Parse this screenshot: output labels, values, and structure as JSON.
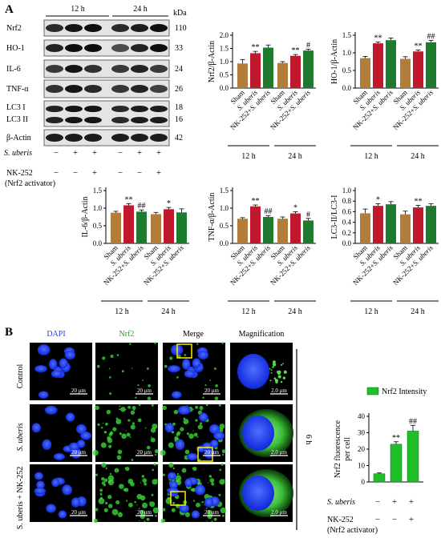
{
  "panel_a": {
    "label": "A",
    "kda_unit": "kDa",
    "time_labels": [
      "12 h",
      "24 h"
    ],
    "blots": [
      {
        "name": "Nrf2",
        "kda": "110"
      },
      {
        "name": "HO-1",
        "kda": "33"
      },
      {
        "name": "IL-6",
        "kda": "24"
      },
      {
        "name": "TNF-α",
        "kda": "26"
      },
      {
        "name": "LC3 I",
        "kda": "18"
      },
      {
        "name": "LC3 II",
        "kda": "16"
      },
      {
        "name": "β-Actin",
        "kda": "42"
      }
    ],
    "treatment_rows": [
      {
        "label": "S. uberis",
        "signs": [
          "−",
          "+",
          "+",
          "−",
          "+",
          "+"
        ]
      },
      {
        "label": "NK-252",
        "sublabel": "(Nrf2 activator)",
        "signs": [
          "−",
          "−",
          "+",
          "−",
          "−",
          "+"
        ]
      }
    ],
    "group_labels": [
      "Sham",
      "S. uberis",
      "NK-252+S. uberis"
    ],
    "colors": {
      "sham": "#b07d3a",
      "suberis": "#c0192d",
      "nk": "#1e7a2e"
    }
  },
  "panel_b": {
    "label": "B",
    "column_headers": [
      "DAPI",
      "Nrf2",
      "Merge",
      "Magnification"
    ],
    "row_labels": [
      "Control",
      "S. uberis",
      "S. uberis + NK-252"
    ],
    "scale_small": "20 μm",
    "scale_large": "2.0 μm",
    "time_label": "6 h",
    "treatment_rows": [
      {
        "label": "S. uberis",
        "signs": [
          "−",
          "+",
          "+"
        ]
      },
      {
        "label": "NK-252",
        "sublabel": "(Nrf2 activator)",
        "signs": [
          "−",
          "−",
          "+"
        ]
      }
    ]
  },
  "chart_data": [
    {
      "type": "bar",
      "ylabel": "Nrf2/β-Actin",
      "ylim": [
        0,
        2.0
      ],
      "yticks": [
        0,
        0.5,
        1.0,
        1.5,
        2.0
      ],
      "categories": [
        "Sham",
        "S. uberis",
        "NK-252+S. uberis",
        "Sham",
        "S. uberis",
        "NK-252+S. uberis"
      ],
      "groups": [
        "12 h",
        "24 h"
      ],
      "values": [
        0.93,
        1.32,
        1.53,
        0.95,
        1.22,
        1.42
      ],
      "errors": [
        0.15,
        0.07,
        0.1,
        0.05,
        0.05,
        0.05
      ],
      "annotations": [
        "",
        "**",
        "",
        "",
        "**",
        "#"
      ]
    },
    {
      "type": "bar",
      "ylabel": "HO-1/β-Actin",
      "ylim": [
        0,
        1.5
      ],
      "yticks": [
        0,
        0.5,
        1.0,
        1.5
      ],
      "categories": [
        "Sham",
        "S. uberis",
        "NK-252+S. uberis",
        "Sham",
        "S. uberis",
        "NK-252+S. uberis"
      ],
      "groups": [
        "12 h",
        "24 h"
      ],
      "values": [
        0.85,
        1.27,
        1.36,
        0.83,
        1.04,
        1.3
      ],
      "errors": [
        0.05,
        0.04,
        0.06,
        0.06,
        0.04,
        0.05
      ],
      "annotations": [
        "",
        "**",
        "",
        "",
        "**",
        "##"
      ]
    },
    {
      "type": "bar",
      "ylabel": "IL-6/β-Actin",
      "ylim": [
        0,
        1.5
      ],
      "yticks": [
        0,
        0.5,
        1.0,
        1.5
      ],
      "categories": [
        "Sham",
        "S. uberis",
        "NK-252+S. uberis",
        "Sham",
        "S. uberis",
        "NK-252+S. uberis"
      ],
      "groups": [
        "12 h",
        "24 h"
      ],
      "values": [
        0.87,
        1.08,
        0.9,
        0.83,
        0.97,
        0.88
      ],
      "errors": [
        0.04,
        0.05,
        0.05,
        0.05,
        0.05,
        0.1
      ],
      "annotations": [
        "",
        "**",
        "##",
        "",
        "*",
        ""
      ]
    },
    {
      "type": "bar",
      "ylabel": "TNF-α/β-Actin",
      "ylim": [
        0,
        1.5
      ],
      "yticks": [
        0,
        0.5,
        1.0,
        1.5
      ],
      "categories": [
        "Sham",
        "S. uberis",
        "NK-252+S. uberis",
        "Sham",
        "S. uberis",
        "NK-252+S. uberis"
      ],
      "groups": [
        "12 h",
        "24 h"
      ],
      "values": [
        0.7,
        1.05,
        0.75,
        0.7,
        0.85,
        0.65
      ],
      "errors": [
        0.03,
        0.04,
        0.04,
        0.05,
        0.05,
        0.06
      ],
      "annotations": [
        "",
        "**",
        "##",
        "",
        "*",
        "#"
      ]
    },
    {
      "type": "bar",
      "ylabel": "LC3-II/LC3-I",
      "ylim": [
        0,
        1.0
      ],
      "yticks": [
        0,
        0.2,
        0.4,
        0.6,
        0.8,
        1.0
      ],
      "categories": [
        "Sham",
        "S. uberis",
        "NK-252+S. uberis",
        "Sham",
        "S. uberis",
        "NK-252+S. uberis"
      ],
      "groups": [
        "12 h",
        "24 h"
      ],
      "values": [
        0.57,
        0.71,
        0.74,
        0.55,
        0.68,
        0.71
      ],
      "errors": [
        0.08,
        0.04,
        0.05,
        0.06,
        0.04,
        0.04
      ],
      "annotations": [
        "",
        "*",
        "",
        "",
        "**",
        ""
      ]
    },
    {
      "type": "bar",
      "ylabel": "Nrf2 fluorescence per cell",
      "ylim": [
        0,
        40
      ],
      "yticks": [
        0,
        10,
        20,
        30,
        40
      ],
      "legend": "Nrf2 Intensity",
      "values": [
        5,
        23,
        31
      ],
      "errors": [
        0.5,
        1.5,
        3.5
      ],
      "annotations": [
        "",
        "**",
        "##"
      ]
    }
  ]
}
